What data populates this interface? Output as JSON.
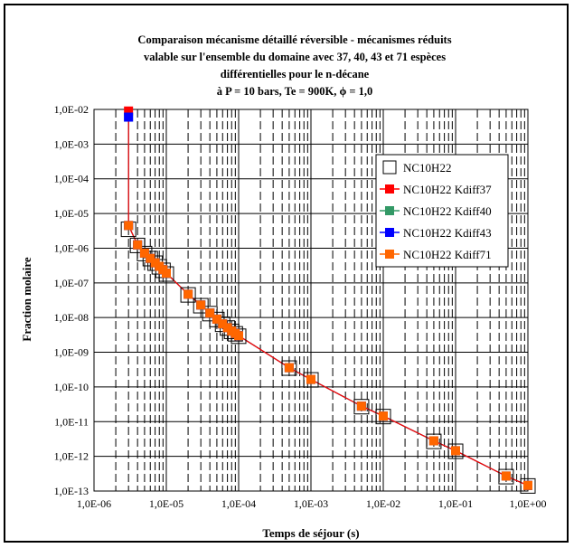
{
  "chart_data": {
    "type": "scatter",
    "title_lines": [
      "Comparaison mécanisme détaillé réversible - mécanismes réduits",
      "valable sur l'ensemble du domaine avec 37, 40, 43 et 71 espèces",
      "différentielles pour le n-décane",
      "à P = 10 bars, Te = 900K, ϕ = 1,0"
    ],
    "xlabel": "Temps de séjour (s)",
    "ylabel": "Fraction molaire",
    "x_scale": "log",
    "y_scale": "log",
    "xlim": [
      1e-06,
      1
    ],
    "ylim": [
      1e-13,
      0.01
    ],
    "x_ticks": [
      "1,0E-06",
      "1,0E-05",
      "1,0E-04",
      "1,0E-03",
      "1,0E-02",
      "1,0E-01",
      "1,0E+00"
    ],
    "y_ticks": [
      "1,0E-02",
      "1,0E-03",
      "1,0E-04",
      "1,0E-05",
      "1,0E-06",
      "1,0E-07",
      "1,0E-08",
      "1,0E-09",
      "1,0E-10",
      "1,0E-11",
      "1,0E-12",
      "1,0E-13"
    ],
    "grid": true,
    "legend_position": "right",
    "series": [
      {
        "name": "NC10H22",
        "style": "open-square",
        "color": "#000000",
        "x": [
          3e-06,
          4e-06,
          5e-06,
          6e-06,
          7e-06,
          8e-06,
          9e-06,
          1e-05,
          2e-05,
          3e-05,
          4e-05,
          5e-05,
          6e-05,
          7e-05,
          8e-05,
          9e-05,
          0.0001,
          0.0005,
          0.001,
          0.005,
          0.01,
          0.05,
          0.1,
          0.5,
          1
        ],
        "y": [
          3.5e-06,
          1.2e-06,
          7e-07,
          5e-07,
          3.7e-07,
          2.9e-07,
          2.3e-07,
          1.8e-07,
          4.5e-08,
          2.2e-08,
          1.3e-08,
          8.8e-09,
          6.4e-09,
          5e-09,
          4e-09,
          3.4e-09,
          2.9e-09,
          3.5e-10,
          1.6e-10,
          2.7e-11,
          1.4e-11,
          2.7e-12,
          1.4e-12,
          2.6e-13,
          1.4e-13
        ]
      },
      {
        "name": "NC10H22 Kdiff37",
        "style": "line-square",
        "color": "#ff0000",
        "x": [
          3e-06,
          3e-06,
          4e-06,
          5e-06,
          6e-06,
          7e-06,
          8e-06,
          9e-06,
          1e-05,
          2e-05,
          3e-05,
          4e-05,
          5e-05,
          6e-05,
          7e-05,
          8e-05,
          9e-05,
          0.0001,
          0.0005,
          0.001,
          0.005,
          0.01,
          0.05,
          0.1,
          0.5,
          1
        ],
        "y": [
          0.009,
          4.5e-06,
          1.25e-06,
          7.2e-07,
          5.1e-07,
          3.8e-07,
          3e-07,
          2.4e-07,
          1.9e-07,
          4.7e-08,
          2.3e-08,
          1.35e-08,
          9e-09,
          6.6e-09,
          5.1e-09,
          4.1e-09,
          3.5e-09,
          3e-09,
          3.6e-10,
          1.65e-10,
          2.8e-11,
          1.45e-11,
          2.8e-12,
          1.45e-12,
          2.7e-13,
          1.45e-13
        ]
      },
      {
        "name": "NC10H22 Kdiff40",
        "style": "line-square",
        "color": "#339966",
        "x": [
          3e-06,
          3e-06,
          4e-06,
          5e-06,
          6e-06,
          7e-06,
          8e-06,
          9e-06,
          1e-05,
          2e-05,
          3e-05,
          4e-05,
          5e-05,
          6e-05,
          7e-05,
          8e-05,
          9e-05,
          0.0001,
          0.0005,
          0.001,
          0.005,
          0.01,
          0.05,
          0.1,
          0.5,
          1
        ],
        "y": [
          0.006,
          4.5e-06,
          1.25e-06,
          7.2e-07,
          5.1e-07,
          3.8e-07,
          3e-07,
          2.4e-07,
          1.9e-07,
          4.7e-08,
          2.3e-08,
          1.35e-08,
          9e-09,
          6.6e-09,
          5.1e-09,
          4.1e-09,
          3.5e-09,
          3e-09,
          3.6e-10,
          1.65e-10,
          2.8e-11,
          1.45e-11,
          2.8e-12,
          1.45e-12,
          2.7e-13,
          1.45e-13
        ]
      },
      {
        "name": "NC10H22 Kdiff43",
        "style": "line-square",
        "color": "#0000ff",
        "x": [
          3e-06,
          3e-06,
          4e-06,
          5e-06,
          6e-06,
          7e-06,
          8e-06,
          9e-06,
          1e-05,
          2e-05,
          3e-05,
          4e-05,
          5e-05,
          6e-05,
          7e-05,
          8e-05,
          9e-05,
          0.0001,
          0.0005,
          0.001,
          0.005,
          0.01,
          0.05,
          0.1,
          0.5,
          1
        ],
        "y": [
          0.006,
          4.5e-06,
          1.25e-06,
          7.2e-07,
          5.1e-07,
          3.8e-07,
          3e-07,
          2.4e-07,
          1.9e-07,
          4.7e-08,
          2.3e-08,
          1.35e-08,
          9e-09,
          6.6e-09,
          5.1e-09,
          4.1e-09,
          3.5e-09,
          3e-09,
          3.6e-10,
          1.65e-10,
          2.8e-11,
          1.45e-11,
          2.8e-12,
          1.45e-12,
          2.7e-13,
          1.45e-13
        ]
      },
      {
        "name": "NC10H22 Kdiff71",
        "style": "line-square",
        "color": "#ff6600",
        "x": [
          3e-06,
          4e-06,
          5e-06,
          6e-06,
          7e-06,
          8e-06,
          9e-06,
          1e-05,
          2e-05,
          3e-05,
          4e-05,
          5e-05,
          6e-05,
          7e-05,
          8e-05,
          9e-05,
          0.0001,
          0.0005,
          0.001,
          0.005,
          0.01,
          0.05,
          0.1,
          0.5,
          1
        ],
        "y": [
          4.5e-06,
          1.25e-06,
          7.2e-07,
          5.1e-07,
          3.8e-07,
          3e-07,
          2.4e-07,
          1.9e-07,
          4.7e-08,
          2.3e-08,
          1.35e-08,
          9e-09,
          6.6e-09,
          5.1e-09,
          4.1e-09,
          3.5e-09,
          3e-09,
          3.6e-10,
          1.65e-10,
          2.8e-11,
          1.45e-11,
          2.8e-12,
          1.45e-12,
          2.7e-13,
          1.45e-13
        ]
      }
    ]
  }
}
